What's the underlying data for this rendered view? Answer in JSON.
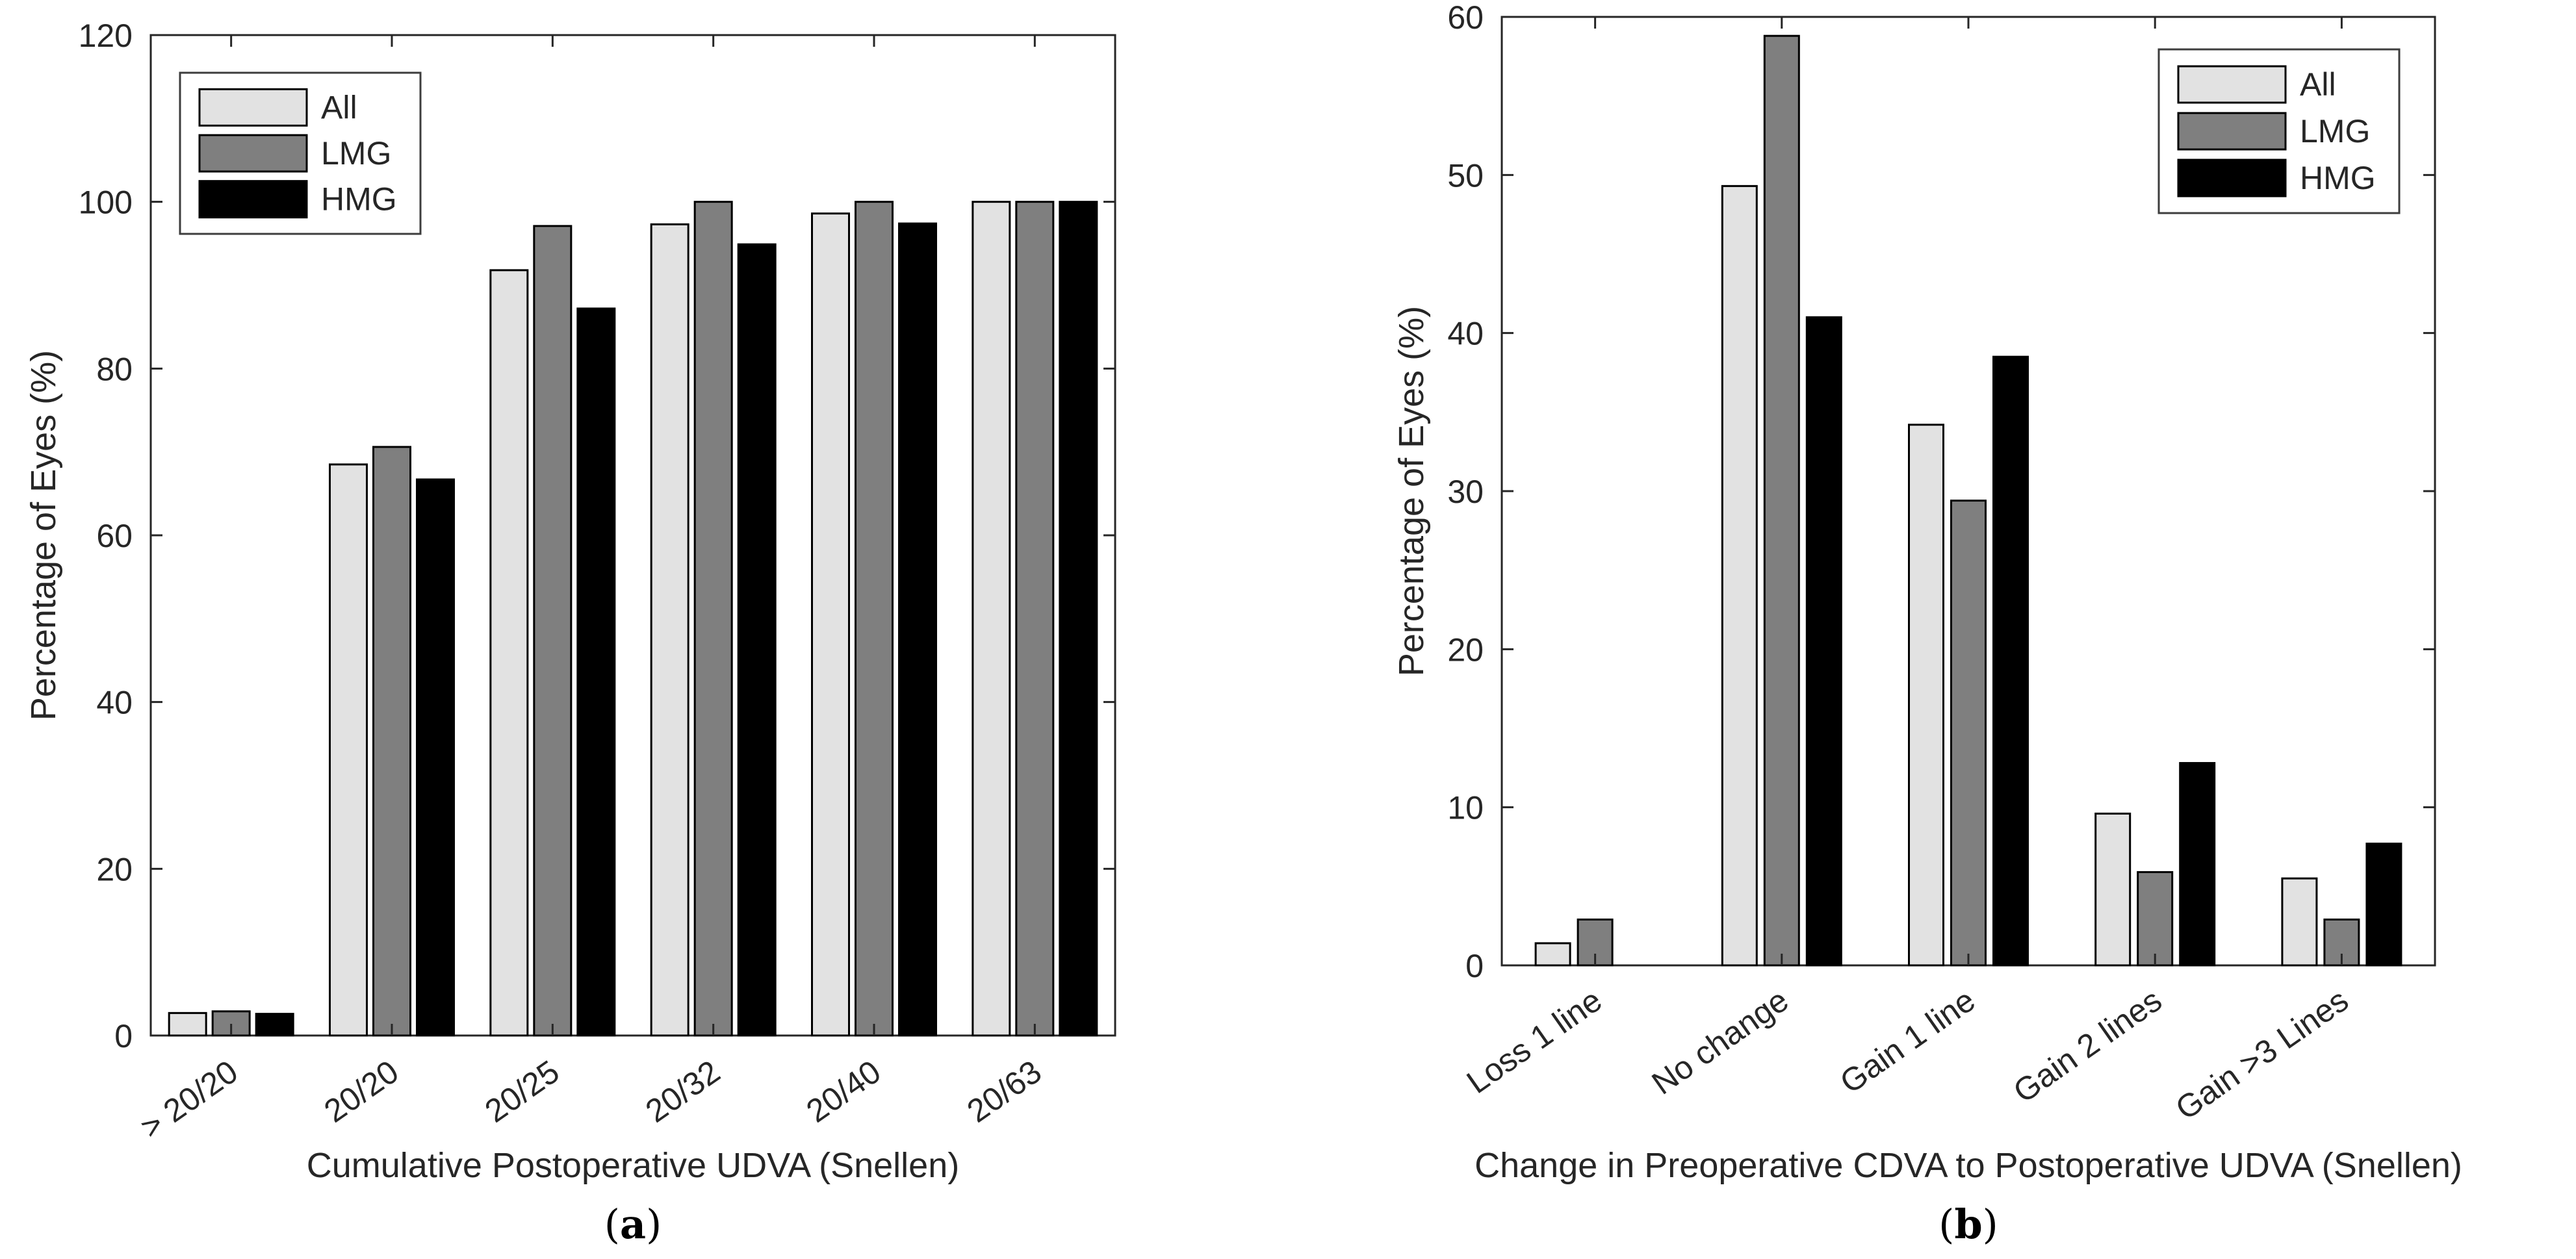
{
  "style": {
    "background": "#ffffff",
    "axis_color": "#262626",
    "text_color": "#262626",
    "bar_edge_color": "#000000",
    "legend_border_color": "#3d3d3d",
    "legend_fill": "#ffffff"
  },
  "chart_data": [
    {
      "id": "a",
      "type": "bar",
      "title": "",
      "xlabel": "Cumulative Postoperative UDVA (Snellen)",
      "ylabel": "Percentage of Eyes (%)",
      "ylim": [
        0,
        120
      ],
      "yticks": [
        0,
        20,
        40,
        60,
        80,
        100,
        120
      ],
      "grid": false,
      "legend_position": "top-left",
      "categories": [
        "> 20/20",
        "20/20",
        "20/25",
        "20/32",
        "20/40",
        "20/63"
      ],
      "series": [
        {
          "name": "All",
          "color": "#e2e2e2",
          "values": [
            2.7,
            68.5,
            91.8,
            97.3,
            98.6,
            100
          ]
        },
        {
          "name": "LMG",
          "color": "#7f7f7f",
          "values": [
            2.9,
            70.6,
            97.1,
            100,
            100,
            100
          ]
        },
        {
          "name": "HMG",
          "color": "#000000",
          "values": [
            2.6,
            66.7,
            87.2,
            94.9,
            97.4,
            100
          ]
        }
      ],
      "caption": {
        "open": "(",
        "letter": "a",
        "close": ")"
      }
    },
    {
      "id": "b",
      "type": "bar",
      "title": "",
      "xlabel": "Change in Preoperative CDVA to Postoperative UDVA (Snellen)",
      "ylabel": "Percentage of Eyes (%)",
      "ylim": [
        0,
        60
      ],
      "yticks": [
        0,
        10,
        20,
        30,
        40,
        50,
        60
      ],
      "grid": false,
      "legend_position": "top-right",
      "categories": [
        "Loss 1 line",
        "No change",
        "Gain 1 line",
        "Gain 2 lines",
        "Gain >3 Lines"
      ],
      "series": [
        {
          "name": "All",
          "color": "#e2e2e2",
          "values": [
            1.4,
            49.3,
            34.2,
            9.6,
            5.5
          ]
        },
        {
          "name": "LMG",
          "color": "#7f7f7f",
          "values": [
            2.9,
            58.8,
            29.4,
            5.9,
            2.9
          ]
        },
        {
          "name": "HMG",
          "color": "#000000",
          "values": [
            0,
            41.0,
            38.5,
            12.8,
            7.7
          ]
        }
      ],
      "caption": {
        "open": "(",
        "letter": "b",
        "close": ")"
      }
    }
  ]
}
